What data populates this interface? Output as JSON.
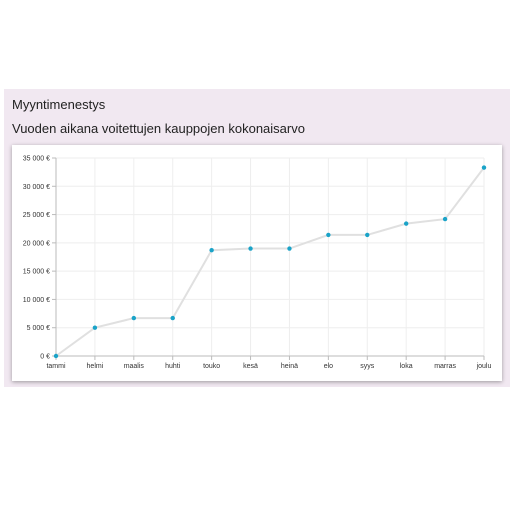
{
  "widget": {
    "title": "Myyntimenestys",
    "subtitle": "Vuoden aikana voitettujen kauppojen kokonaisarvo"
  },
  "colors": {
    "background": "#f1e8f1",
    "line": "#e0e0e0",
    "point": "#1aa3c8",
    "grid": "#eeeeee"
  },
  "chart_data": {
    "type": "line",
    "categories": [
      "tammi",
      "helmi",
      "maalis",
      "huhti",
      "touko",
      "kesä",
      "heinä",
      "elo",
      "syys",
      "loka",
      "marras",
      "joulu"
    ],
    "series": [
      {
        "values": [
          0,
          5000,
          6700,
          6700,
          18700,
          19000,
          19000,
          21400,
          21400,
          23400,
          24200,
          33300
        ]
      }
    ],
    "y_ticks": [
      0,
      5000,
      10000,
      15000,
      20000,
      25000,
      30000,
      35000
    ],
    "y_tick_labels": [
      "0 €",
      "5 000 €",
      "10 000 €",
      "15 000 €",
      "20 000 €",
      "25 000 €",
      "30 000 €",
      "35 000 €"
    ],
    "ylim": [
      0,
      35000
    ],
    "grid": true,
    "legend": "none"
  }
}
